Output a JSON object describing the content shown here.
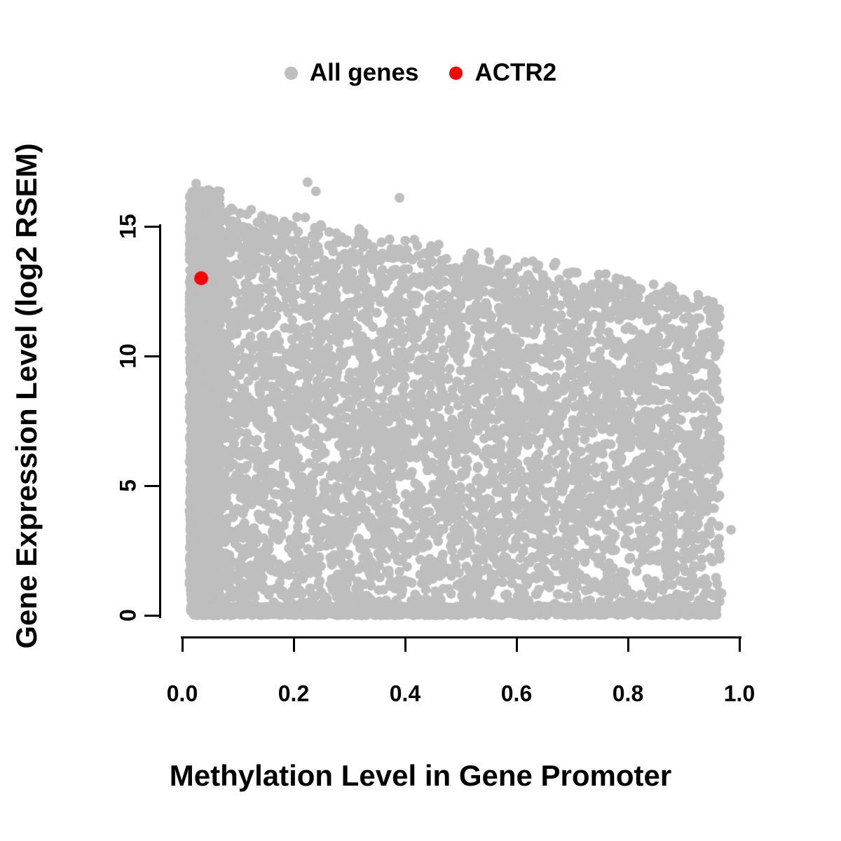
{
  "page": {
    "background": "#FFFFFF"
  },
  "chart_data": {
    "type": "scatter",
    "title": "",
    "xlabel": "Methylation Level in Gene Promoter",
    "ylabel": "Gene Expression Level (log2 RSEM)",
    "xlim": [
      0,
      1.0
    ],
    "ylim": [
      0,
      16.8
    ],
    "grid": false,
    "legend_position": "top-center",
    "x_ticks": [
      {
        "value": 0.0,
        "label": "0.0"
      },
      {
        "value": 0.2,
        "label": "0.2"
      },
      {
        "value": 0.4,
        "label": "0.4"
      },
      {
        "value": 0.6,
        "label": "0.6"
      },
      {
        "value": 0.8,
        "label": "0.8"
      },
      {
        "value": 1.0,
        "label": "1.0"
      }
    ],
    "y_ticks": [
      {
        "value": 0,
        "label": "0"
      },
      {
        "value": 5,
        "label": "5"
      },
      {
        "value": 10,
        "label": "10"
      },
      {
        "value": 15,
        "label": "15"
      }
    ],
    "legend": [
      {
        "label": "All genes",
        "color": "#BEBEBE",
        "marker": "circle"
      },
      {
        "label": "ACTR2",
        "color": "#FF0000",
        "marker": "circle"
      }
    ],
    "series": [
      {
        "name": "All genes",
        "color": "#BEBEBE",
        "marker_radius_px": 7,
        "style": "dense-cloud",
        "summary": "Thousands of genes; very dense vertical stripe at promoter methylation < 0.07 spanning expression 0-16.5; broad cloud from methylation 0.05 to 0.96 whose upper envelope declines from ~15.9 (log2 RSEM) at low methylation to ~12 at methylation 0.95; dense band of near-zero expression along the bottom across the full methylation range.",
        "generator": {
          "seed": 42,
          "left_stripe": {
            "count": 2600,
            "x_min": 0.013,
            "x_max": 0.068,
            "y_max": 16.4
          },
          "main_cloud": {
            "count": 5200,
            "x_min": 0.05,
            "x_max": 0.965,
            "x_skew": 1.15,
            "envelope_intercept": 15.9,
            "envelope_slope": -4.0,
            "envelope_noise": 0.8,
            "y_power": 0.92
          },
          "baseline_band": {
            "count": 1400,
            "x_min": 0.02,
            "x_max": 0.96,
            "y_max": 0.35
          }
        },
        "notable_points": [
          [
            0.985,
            3.3
          ],
          [
            0.968,
            0.85
          ],
          [
            0.225,
            16.7
          ],
          [
            0.24,
            16.35
          ],
          [
            0.39,
            16.1
          ],
          [
            0.025,
            16.65
          ],
          [
            0.05,
            16.3
          ],
          [
            0.55,
            14.0
          ],
          [
            0.67,
            13.6
          ]
        ]
      },
      {
        "name": "ACTR2",
        "color": "#FF0000",
        "marker_radius_px": 10,
        "points": [
          [
            0.034,
            13.0
          ]
        ]
      }
    ]
  }
}
